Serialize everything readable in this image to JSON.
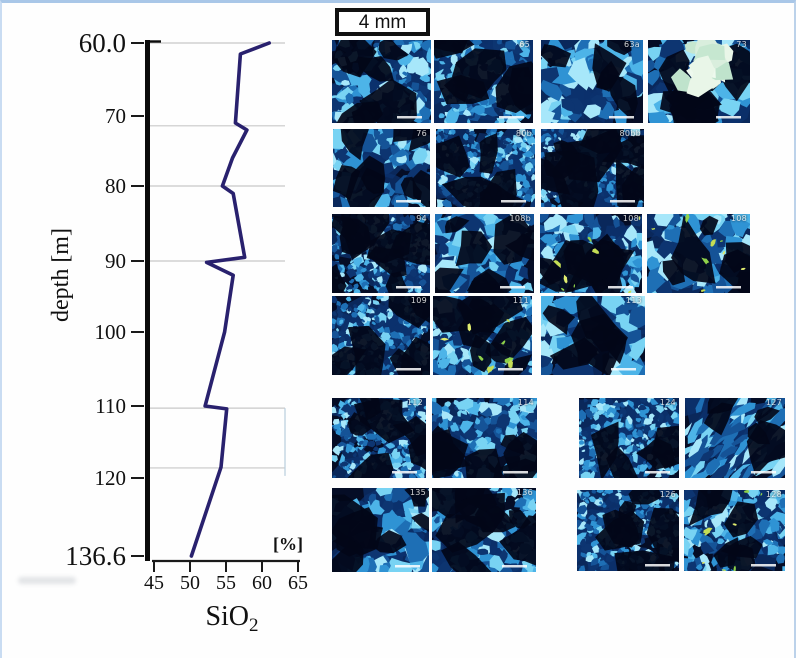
{
  "scale_box": {
    "label": "4 mm"
  },
  "chart_data": {
    "type": "line",
    "title": "",
    "xlabel_base": "SiO",
    "xlabel_sub": "2",
    "x_unit": "[%]",
    "ylabel": "depth [m]",
    "x_range": [
      45,
      65
    ],
    "x_ticks": [
      "45",
      "50",
      "55",
      "60",
      "65"
    ],
    "depth_range": [
      60.0,
      136.6
    ],
    "y_ticks": [
      {
        "label": "60.0",
        "depth": 60.0,
        "big": true
      },
      {
        "label": "70",
        "depth": 70
      },
      {
        "label": "80",
        "depth": 80
      },
      {
        "label": "90",
        "depth": 90
      },
      {
        "label": "100",
        "depth": 100
      },
      {
        "label": "110",
        "depth": 110
      },
      {
        "label": "120",
        "depth": 120
      },
      {
        "label": "136.6",
        "depth": 136.6,
        "big": true
      }
    ],
    "gridline_depths": [
      60,
      71.4,
      80,
      90,
      110.3,
      118.6
    ],
    "grid": true,
    "legend": false,
    "series": [
      {
        "name": "SiO2 [%]",
        "color": "#29216e",
        "points": [
          [
            60.0,
            61.0
          ],
          [
            61.5,
            57.0
          ],
          [
            71.0,
            56.3
          ],
          [
            72.0,
            57.9
          ],
          [
            76.0,
            55.9
          ],
          [
            80.0,
            54.5
          ],
          [
            81.0,
            56.0
          ],
          [
            89.5,
            57.6
          ],
          [
            90.2,
            52.3
          ],
          [
            92.0,
            56.0
          ],
          [
            100.0,
            54.8
          ],
          [
            110.0,
            52.1
          ],
          [
            110.4,
            55.1
          ],
          [
            118.5,
            54.3
          ],
          [
            136.6,
            50.2
          ]
        ]
      }
    ]
  },
  "micrographs": {
    "rows": [
      {
        "labels": [
          "",
          "65",
          "63a",
          "73"
        ]
      },
      {
        "labels": [
          "76",
          "80b",
          "80bb"
        ]
      },
      {
        "labels": [
          "94",
          "108b",
          "108",
          "108"
        ]
      },
      {
        "labels": [
          "109",
          "111",
          "113"
        ]
      },
      {
        "labels": [
          "112",
          "114",
          "124",
          "127"
        ]
      },
      {
        "labels": [
          "135",
          "136",
          "126",
          "128"
        ]
      }
    ]
  },
  "colors": {
    "line": "#29216e",
    "grid": "#c8c8c8",
    "frame_blue": "#a9c7e8",
    "tile_background": "#050d26",
    "tile_bright_grain": "#78d3f3"
  }
}
